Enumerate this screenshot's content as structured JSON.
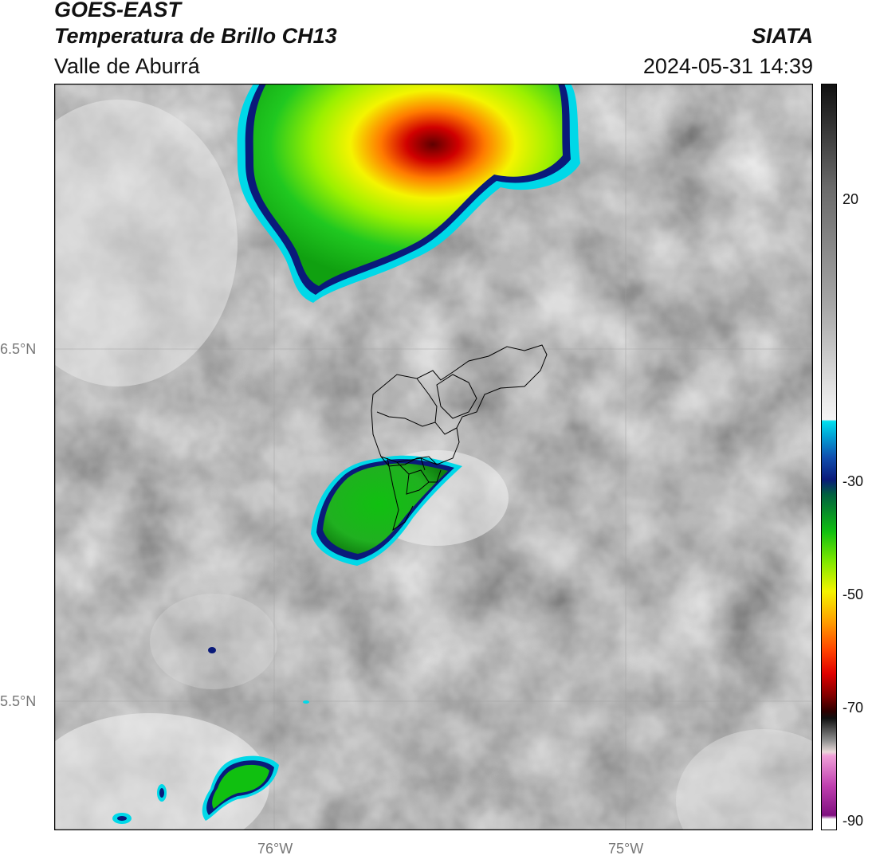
{
  "header": {
    "satellite": "GOES-EAST",
    "product": "Temperatura de Brillo CH13",
    "region": "Valle de Aburrá",
    "agency": "SIATA",
    "datetime": "2024-05-31 14:39"
  },
  "map": {
    "lat_labels": [
      "6.5°N",
      "5.5°N"
    ],
    "lon_labels": [
      "76°W",
      "75°W"
    ],
    "gridlines": true,
    "overlay": "municipal boundaries (black outline)"
  },
  "colorbar": {
    "ticks": [
      "20",
      "-30",
      "-50",
      "-70",
      "-90"
    ],
    "colors": {
      "cyan": "#00d8e8",
      "dark_blue": "#0a1a7a",
      "green": "#10c010",
      "yellow": "#f4f400",
      "orange": "#ff8c00",
      "red": "#e00000",
      "dark_red": "#500000",
      "magenta": "#e060d0",
      "purple": "#801080"
    }
  }
}
